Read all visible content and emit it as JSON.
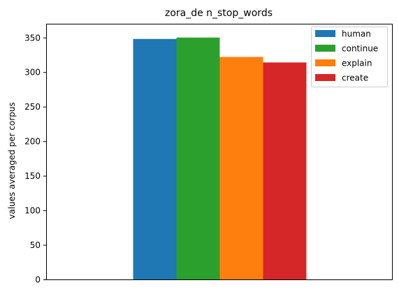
{
  "chart_data": {
    "type": "bar",
    "title": "zora_de n_stop_words",
    "xlabel": "",
    "ylabel": "values averaged per corpus",
    "ylim": [
      0,
      370
    ],
    "yticks": [
      0,
      50,
      100,
      150,
      200,
      250,
      300,
      350
    ],
    "grid": false,
    "legend_position": "top-right",
    "series": [
      {
        "name": "human",
        "value": 348,
        "color": "#1f77b4"
      },
      {
        "name": "continue",
        "value": 350,
        "color": "#2ca02c"
      },
      {
        "name": "explain",
        "value": 322,
        "color": "#ff7f0e"
      },
      {
        "name": "create",
        "value": 314,
        "color": "#d62728"
      }
    ]
  }
}
